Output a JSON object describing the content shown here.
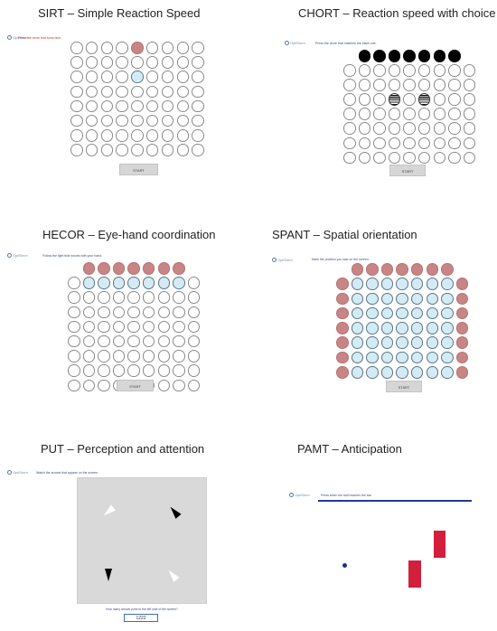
{
  "panels": {
    "sirt": {
      "title": "SIRT – Simple Reaction Speed",
      "logo": "OptiSmm",
      "instruction": "Press the circle that turns blue.",
      "button": "START"
    },
    "chort": {
      "title": "CHORT – Reaction speed with choice",
      "logo": "OptiSmm",
      "instruction": "Press the circle that matches the black one.",
      "button": "START"
    },
    "hecor": {
      "title": "HECOR – Eye-hand coordination",
      "logo": "OptiSmm",
      "instruction": "Follow the light that moves with your hand.",
      "button": "START"
    },
    "spant": {
      "title": "SPANT – Spatial orientation",
      "logo": "OptiSmm",
      "instruction": "Mark the position you saw on the screen.",
      "button": "START"
    },
    "put": {
      "title": "PUT – Perception and attention",
      "logo": "OptiSmm",
      "instruction": "Watch the arrows that appear on the screen.",
      "question": "How many arrows point to the left side of the screen?",
      "input_value": "1222"
    },
    "pamt": {
      "title": "PAMT – Anticipation",
      "logo": "OptiSmm",
      "instruction": "Press when the ball reaches the bar."
    }
  },
  "colors": {
    "target_pink": "#c88585",
    "active_blue": "#d3ebf5",
    "pamt_blue": "#223a9a",
    "pamt_red": "#d21f3c",
    "instruction_red": "#c0392b"
  },
  "grids": {
    "sirt": {
      "rows": 8,
      "cols": 9,
      "pink": [
        [
          0,
          4
        ]
      ],
      "blue": [
        [
          2,
          4
        ]
      ],
      "black": [],
      "striped": []
    },
    "chort": {
      "rows": 8,
      "cols": 9,
      "black_row": [
        1,
        2,
        3,
        4,
        5,
        6,
        7
      ],
      "pink": [],
      "blue": [],
      "striped": [
        [
          3,
          3
        ],
        [
          3,
          5
        ]
      ]
    },
    "hecor": {
      "rows": 9,
      "cols": 9,
      "pink_row": [
        1,
        2,
        3,
        4,
        5,
        6,
        7
      ],
      "blue_row": [
        1,
        2,
        3,
        4,
        5,
        6,
        7
      ]
    },
    "spant": {
      "rows": 8,
      "cols": 9
    }
  }
}
